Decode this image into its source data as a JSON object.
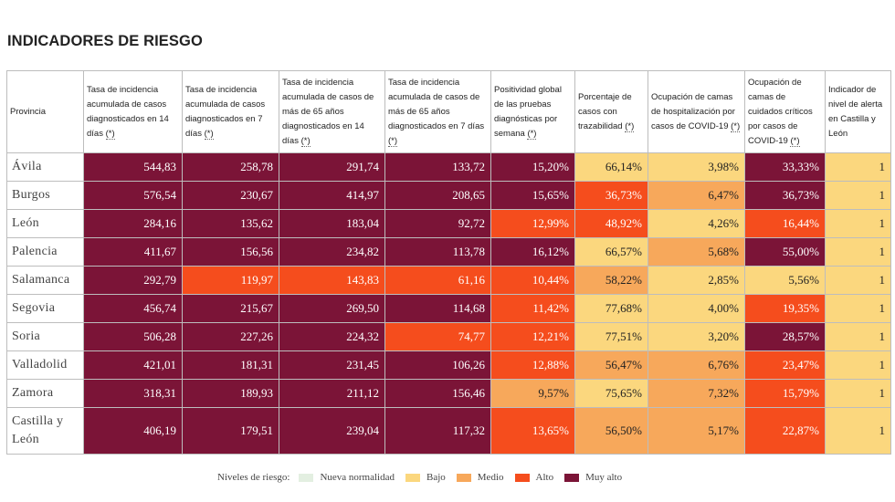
{
  "page": {
    "title": "INDICADORES DE RIESGO"
  },
  "colors": {
    "nueva": "#e3efe1",
    "bajo": "#fbd77e",
    "medio": "#f7a85b",
    "alto": "#f54d1d",
    "muy": "#7b1437"
  },
  "table": {
    "headers": [
      {
        "text": "Provincia",
        "link": ""
      },
      {
        "text": "Tasa de incidencia acumulada de casos diagnosticados en 14 días ",
        "link": "(*)"
      },
      {
        "text": "Tasa de incidencia acumulada de casos diagnosticados en 7 días ",
        "link": "(*)"
      },
      {
        "text": "Tasa de incidencia acumulada de casos de más de 65 años diagnosticados en 14 días ",
        "link": "(*)"
      },
      {
        "text": "Tasa de incidencia acumulada de casos de más de 65 años diagnosticados en 7 días ",
        "link": "(*)"
      },
      {
        "text": "Positividad global de las pruebas diagnósticas por semana ",
        "link": "(*)"
      },
      {
        "text": "Porcentaje de casos con trazabilidad ",
        "link": "(*)"
      },
      {
        "text": "Ocupación de camas de hospitalización por casos de COVID-19 ",
        "link": "(*)"
      },
      {
        "text": "Ocupación de camas de cuidados críticos por casos de COVID-19 ",
        "link": "(*)"
      },
      {
        "text": "Indicador de nivel de alerta en Castilla y León",
        "link": ""
      }
    ],
    "rows": [
      {
        "province": "Ávila",
        "cells": [
          {
            "value": "544,83",
            "level": "muy"
          },
          {
            "value": "258,78",
            "level": "muy"
          },
          {
            "value": "291,74",
            "level": "muy"
          },
          {
            "value": "133,72",
            "level": "muy"
          },
          {
            "value": "15,20%",
            "level": "muy"
          },
          {
            "value": "66,14%",
            "level": "bajo"
          },
          {
            "value": "3,98%",
            "level": "bajo"
          },
          {
            "value": "33,33%",
            "level": "muy"
          },
          {
            "value": "1",
            "level": "bajo"
          }
        ]
      },
      {
        "province": "Burgos",
        "cells": [
          {
            "value": "576,54",
            "level": "muy"
          },
          {
            "value": "230,67",
            "level": "muy"
          },
          {
            "value": "414,97",
            "level": "muy"
          },
          {
            "value": "208,65",
            "level": "muy"
          },
          {
            "value": "15,65%",
            "level": "muy"
          },
          {
            "value": "36,73%",
            "level": "alto"
          },
          {
            "value": "6,47%",
            "level": "medio"
          },
          {
            "value": "36,73%",
            "level": "muy"
          },
          {
            "value": "1",
            "level": "bajo"
          }
        ]
      },
      {
        "province": "León",
        "cells": [
          {
            "value": "284,16",
            "level": "muy"
          },
          {
            "value": "135,62",
            "level": "muy"
          },
          {
            "value": "183,04",
            "level": "muy"
          },
          {
            "value": "92,72",
            "level": "muy"
          },
          {
            "value": "12,99%",
            "level": "alto"
          },
          {
            "value": "48,92%",
            "level": "alto"
          },
          {
            "value": "4,26%",
            "level": "bajo"
          },
          {
            "value": "16,44%",
            "level": "alto"
          },
          {
            "value": "1",
            "level": "bajo"
          }
        ]
      },
      {
        "province": "Palencia",
        "cells": [
          {
            "value": "411,67",
            "level": "muy"
          },
          {
            "value": "156,56",
            "level": "muy"
          },
          {
            "value": "234,82",
            "level": "muy"
          },
          {
            "value": "113,78",
            "level": "muy"
          },
          {
            "value": "16,12%",
            "level": "muy"
          },
          {
            "value": "66,57%",
            "level": "bajo"
          },
          {
            "value": "5,68%",
            "level": "medio"
          },
          {
            "value": "55,00%",
            "level": "muy"
          },
          {
            "value": "1",
            "level": "bajo"
          }
        ]
      },
      {
        "province": "Salamanca",
        "cells": [
          {
            "value": "292,79",
            "level": "muy"
          },
          {
            "value": "119,97",
            "level": "alto"
          },
          {
            "value": "143,83",
            "level": "alto"
          },
          {
            "value": "61,16",
            "level": "alto"
          },
          {
            "value": "10,44%",
            "level": "alto"
          },
          {
            "value": "58,22%",
            "level": "medio"
          },
          {
            "value": "2,85%",
            "level": "bajo"
          },
          {
            "value": "5,56%",
            "level": "bajo"
          },
          {
            "value": "1",
            "level": "bajo"
          }
        ]
      },
      {
        "province": "Segovia",
        "cells": [
          {
            "value": "456,74",
            "level": "muy"
          },
          {
            "value": "215,67",
            "level": "muy"
          },
          {
            "value": "269,50",
            "level": "muy"
          },
          {
            "value": "114,68",
            "level": "muy"
          },
          {
            "value": "11,42%",
            "level": "alto"
          },
          {
            "value": "77,68%",
            "level": "bajo"
          },
          {
            "value": "4,00%",
            "level": "bajo"
          },
          {
            "value": "19,35%",
            "level": "alto"
          },
          {
            "value": "1",
            "level": "bajo"
          }
        ]
      },
      {
        "province": "Soria",
        "cells": [
          {
            "value": "506,28",
            "level": "muy"
          },
          {
            "value": "227,26",
            "level": "muy"
          },
          {
            "value": "224,32",
            "level": "muy"
          },
          {
            "value": "74,77",
            "level": "alto"
          },
          {
            "value": "12,21%",
            "level": "alto"
          },
          {
            "value": "77,51%",
            "level": "bajo"
          },
          {
            "value": "3,20%",
            "level": "bajo"
          },
          {
            "value": "28,57%",
            "level": "muy"
          },
          {
            "value": "1",
            "level": "bajo"
          }
        ]
      },
      {
        "province": "Valladolid",
        "cells": [
          {
            "value": "421,01",
            "level": "muy"
          },
          {
            "value": "181,31",
            "level": "muy"
          },
          {
            "value": "231,45",
            "level": "muy"
          },
          {
            "value": "106,26",
            "level": "muy"
          },
          {
            "value": "12,88%",
            "level": "alto"
          },
          {
            "value": "56,47%",
            "level": "medio"
          },
          {
            "value": "6,76%",
            "level": "medio"
          },
          {
            "value": "23,47%",
            "level": "alto"
          },
          {
            "value": "1",
            "level": "bajo"
          }
        ]
      },
      {
        "province": "Zamora",
        "cells": [
          {
            "value": "318,31",
            "level": "muy"
          },
          {
            "value": "189,93",
            "level": "muy"
          },
          {
            "value": "211,12",
            "level": "muy"
          },
          {
            "value": "156,46",
            "level": "muy"
          },
          {
            "value": "9,57%",
            "level": "medio"
          },
          {
            "value": "75,65%",
            "level": "bajo"
          },
          {
            "value": "7,32%",
            "level": "medio"
          },
          {
            "value": "15,79%",
            "level": "alto"
          },
          {
            "value": "1",
            "level": "bajo"
          }
        ]
      },
      {
        "province": "Castilla y León",
        "cells": [
          {
            "value": "406,19",
            "level": "muy"
          },
          {
            "value": "179,51",
            "level": "muy"
          },
          {
            "value": "239,04",
            "level": "muy"
          },
          {
            "value": "117,32",
            "level": "muy"
          },
          {
            "value": "13,65%",
            "level": "alto"
          },
          {
            "value": "56,50%",
            "level": "medio"
          },
          {
            "value": "5,17%",
            "level": "medio"
          },
          {
            "value": "22,87%",
            "level": "alto"
          },
          {
            "value": "1",
            "level": "bajo"
          }
        ]
      }
    ]
  },
  "legend": {
    "title": "Niveles de riesgo:",
    "items": [
      {
        "label": "Nueva normalidad",
        "level": "nueva"
      },
      {
        "label": "Bajo",
        "level": "bajo"
      },
      {
        "label": "Medio",
        "level": "medio"
      },
      {
        "label": "Alto",
        "level": "alto"
      },
      {
        "label": "Muy alto",
        "level": "muy"
      }
    ]
  }
}
